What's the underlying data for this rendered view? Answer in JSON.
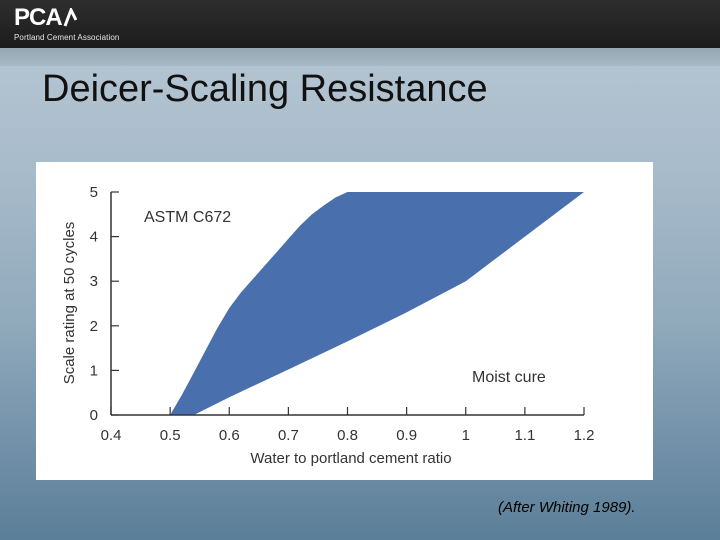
{
  "header": {
    "logo_text": "PCA",
    "logo_subtitle": "Portland Cement Association"
  },
  "slide": {
    "title": "Deicer-Scaling Resistance",
    "caption": "(After Whiting 1989)."
  },
  "colors": {
    "band": "#4a6fad",
    "axis": "#333333"
  },
  "chart_data": {
    "type": "area",
    "title": "",
    "xlabel": "Water to portland cement ratio",
    "ylabel": "Scale rating at 50 cycles",
    "xlim": [
      0.4,
      1.2
    ],
    "ylim": [
      0,
      5
    ],
    "xticks": [
      "0.4",
      "0.5",
      "0.6",
      "0.7",
      "0.8",
      "0.9",
      "1",
      "1.1",
      "1.2"
    ],
    "yticks": [
      "0",
      "1",
      "2",
      "3",
      "4",
      "5"
    ],
    "annotations": [
      "ASTM C672",
      "Moist cure"
    ],
    "series": [
      {
        "upper": {
          "x": [
            0.5,
            0.52,
            0.54,
            0.56,
            0.58,
            0.6,
            0.62,
            0.64,
            0.66,
            0.68,
            0.7,
            0.72,
            0.74,
            0.76,
            0.78,
            0.8
          ],
          "y": [
            0.0,
            0.45,
            0.95,
            1.45,
            1.95,
            2.4,
            2.75,
            3.05,
            3.35,
            3.65,
            3.95,
            4.25,
            4.5,
            4.7,
            4.88,
            5.0
          ]
        },
        "lower": {
          "x": [
            0.54,
            0.6,
            0.7,
            0.8,
            0.9,
            1.0,
            1.1,
            1.2
          ],
          "y": [
            0.0,
            0.4,
            1.02,
            1.65,
            2.3,
            3.0,
            4.0,
            5.0
          ]
        }
      }
    ]
  }
}
